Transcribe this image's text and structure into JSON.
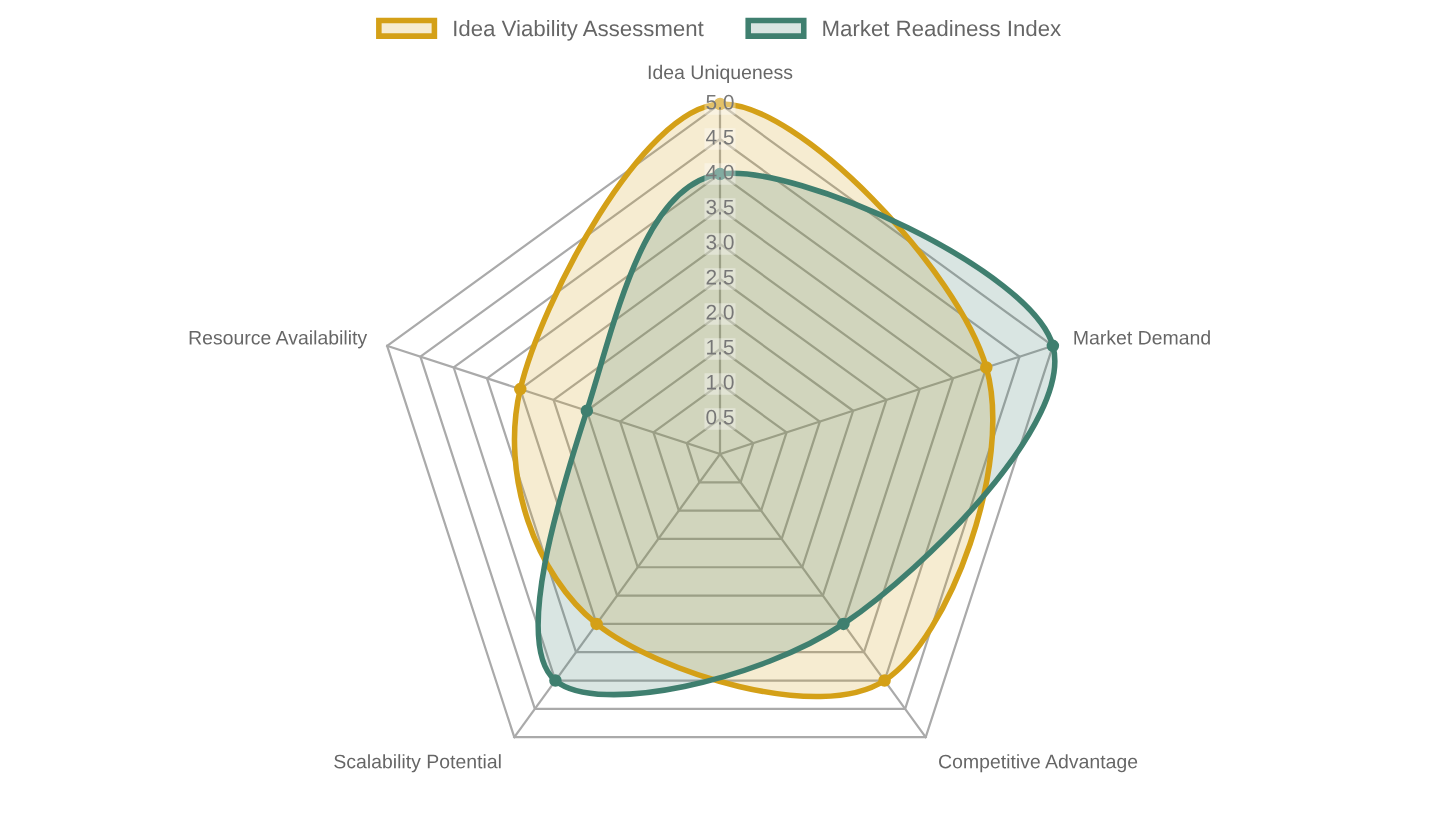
{
  "chart_data": {
    "type": "radar",
    "categories": [
      "Idea Uniqueness",
      "Market Demand",
      "Competitive Advantage",
      "Scalability Potential",
      "Resource Availability"
    ],
    "series": [
      {
        "name": "Idea Viability Assessment",
        "color": "#d4a017",
        "values": [
          5.0,
          4.0,
          4.0,
          3.0,
          3.0
        ]
      },
      {
        "name": "Market Readiness Index",
        "color": "#3f7f6f",
        "values": [
          4.0,
          5.0,
          3.0,
          4.0,
          2.0
        ]
      }
    ],
    "ylim": [
      0,
      5
    ],
    "yticks": [
      {
        "value": 0.5,
        "label": "0.5"
      },
      {
        "value": 1,
        "label": "1.0"
      },
      {
        "value": 1.5,
        "label": "1.5"
      },
      {
        "value": 2,
        "label": "2.0"
      },
      {
        "value": 2.5,
        "label": "2.5"
      },
      {
        "value": 3,
        "label": "3.0"
      },
      {
        "value": 3.5,
        "label": "3.5"
      },
      {
        "value": 4,
        "label": "4.0"
      },
      {
        "value": 4.5,
        "label": "4.5"
      },
      {
        "value": 5,
        "label": "5.0"
      }
    ],
    "grid": true,
    "legend": "top",
    "marker": "circle",
    "line_style": "solid"
  }
}
